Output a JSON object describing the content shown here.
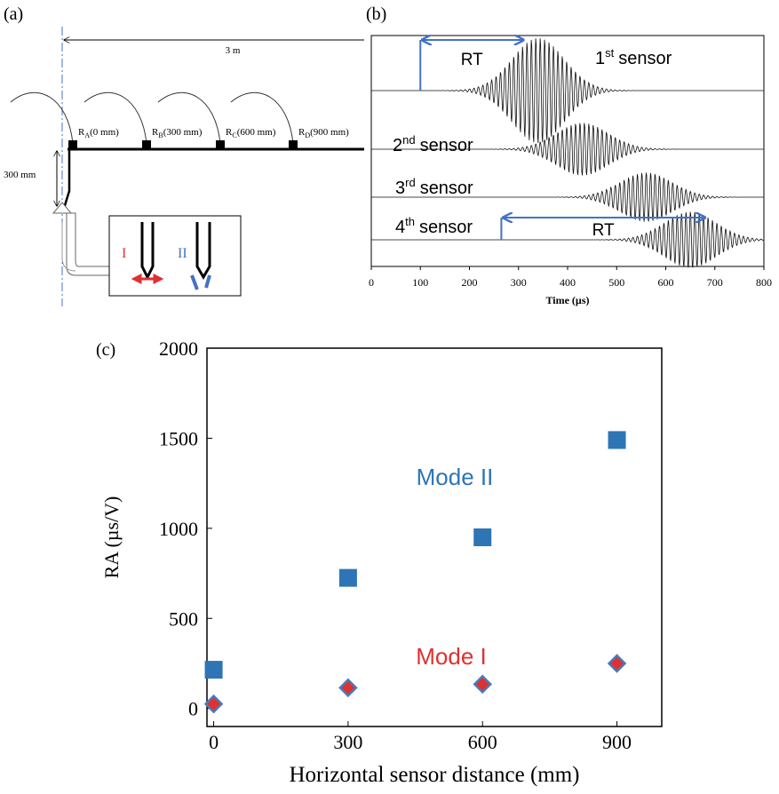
{
  "panels": [
    "(a)",
    "(b)",
    "(c)"
  ],
  "diagram": {
    "span": "3 m",
    "depth": "300 mm",
    "sensors": [
      {
        "name": "R",
        "sub": "A",
        "text": "(0 mm)"
      },
      {
        "name": "R",
        "sub": "B",
        "text": "(300 mm)"
      },
      {
        "name": "R",
        "sub": "C",
        "text": "(600 mm)"
      },
      {
        "name": "R",
        "sub": "D",
        "text": "(900 mm)"
      }
    ],
    "modes": [
      "I",
      "II"
    ]
  },
  "chart_data": [
    {
      "type": "waveform",
      "xlabel": "Time (µs)",
      "xlim": [
        0,
        800
      ],
      "xticks": [
        0,
        100,
        200,
        300,
        400,
        500,
        600,
        700,
        800
      ],
      "sensors": [
        {
          "ordinal": "1",
          "suffix": "st",
          "word": "sensor",
          "peak": 340,
          "rt": {
            "label": "RT",
            "x": [
              100,
              310
            ]
          }
        },
        {
          "ordinal": "2",
          "suffix": "nd",
          "word": "sensor",
          "peak": 430
        },
        {
          "ordinal": "3",
          "suffix": "rd",
          "word": "sensor",
          "peak": 560
        },
        {
          "ordinal": "4",
          "suffix": "th",
          "word": "sensor",
          "peak": 650,
          "rt": {
            "label": "RT",
            "x": [
              265,
              680
            ]
          }
        }
      ]
    },
    {
      "type": "scatter",
      "xlabel": "Horizontal sensor distance (mm)",
      "ylabel": "RA (µs/V)",
      "xlim": [
        -15,
        1000
      ],
      "ylim": [
        -100,
        2000
      ],
      "xticks": [
        0,
        300,
        600,
        900
      ],
      "yticks": [
        0,
        500,
        1000,
        1500,
        2000
      ],
      "series": [
        {
          "name": "Mode II",
          "color": "#2e75b6",
          "marker": "square",
          "x": [
            0,
            300,
            600,
            900
          ],
          "values": [
            215,
            725,
            950,
            1490
          ]
        },
        {
          "name": "Mode I",
          "color": "#e03030",
          "edge": "#4a7ab8",
          "marker": "diamond",
          "x": [
            0,
            300,
            600,
            900
          ],
          "values": [
            25,
            115,
            135,
            250
          ]
        }
      ]
    }
  ]
}
